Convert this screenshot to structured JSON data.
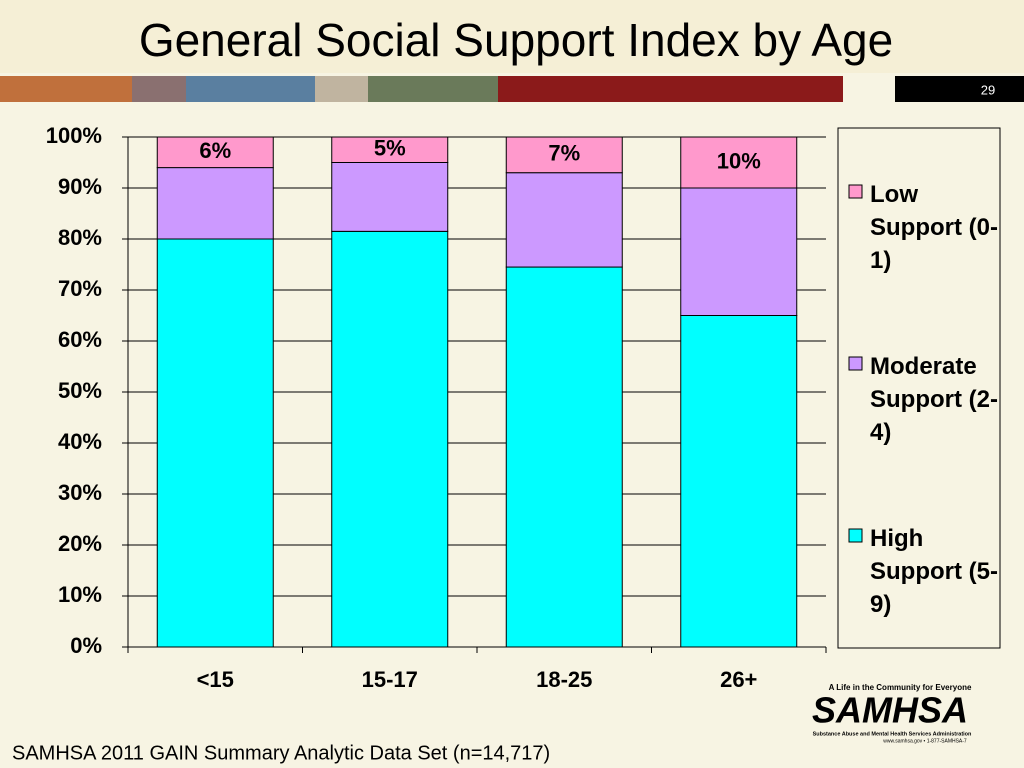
{
  "chart_data": {
    "type": "stacked_bar",
    "title": "General Social Support Index by Age",
    "slide_number": "29",
    "categories": [
      "<15",
      "15-17",
      "18-25",
      "26+"
    ],
    "series": [
      {
        "name": "High Support (5-9)",
        "color": "#00ffff",
        "values": [
          80,
          81.5,
          74.5,
          65
        ]
      },
      {
        "name": "Moderate Support (2-4)",
        "color": "#cc99ff",
        "values": [
          14,
          13.5,
          18.5,
          25
        ]
      },
      {
        "name": "Low Support (0-1)",
        "color": "#ff99cc",
        "values": [
          6,
          5,
          7,
          10
        ],
        "value_labels": [
          "6%",
          "5%",
          "7%",
          "10%"
        ]
      }
    ],
    "ylim": [
      0,
      100
    ],
    "yticks": [
      {
        "value": 0,
        "label": "0%"
      },
      {
        "value": 10,
        "label": "10%"
      },
      {
        "value": 20,
        "label": "20%"
      },
      {
        "value": 30,
        "label": "30%"
      },
      {
        "value": 40,
        "label": "40%"
      },
      {
        "value": 50,
        "label": "50%"
      },
      {
        "value": 60,
        "label": "60%"
      },
      {
        "value": 70,
        "label": "70%"
      },
      {
        "value": 80,
        "label": "80%"
      },
      {
        "value": 90,
        "label": "90%"
      },
      {
        "value": 100,
        "label": "100%"
      }
    ],
    "grid": true,
    "legend": "right",
    "source": "SAMHSA 2011 GAIN Summary Analytic Data Set (n=14,717)",
    "logo": {
      "tagline": "A Life in the Community for Everyone",
      "name": "SAMHSA",
      "subtitle": "Substance Abuse and Mental Health Services Administration",
      "contact": "www.samhsa.gov • 1-877-SAMHSA-7"
    }
  }
}
